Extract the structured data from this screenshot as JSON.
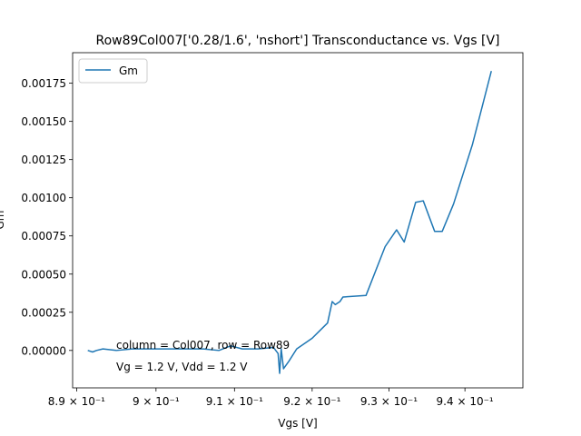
{
  "chart_data": {
    "type": "line",
    "title": "Row89Col007['0.28/1.6', 'nshort'] Transconductance vs. Vgs [V]",
    "xlabel": "Vgs [V]",
    "ylabel": "Gm",
    "x_scale": "log",
    "xlim": [
      0.8895,
      0.9477
    ],
    "ylim": [
      -0.000245,
      0.00195
    ],
    "x_ticks": [
      {
        "value": 0.89,
        "label": "8.9 × 10⁻¹"
      },
      {
        "value": 0.9,
        "label": "9 × 10⁻¹"
      },
      {
        "value": 0.91,
        "label": "9.1 × 10⁻¹"
      },
      {
        "value": 0.92,
        "label": "9.2 × 10⁻¹"
      },
      {
        "value": 0.93,
        "label": "9.3 × 10⁻¹"
      },
      {
        "value": 0.94,
        "label": "9.4 × 10⁻¹"
      }
    ],
    "y_ticks": [
      {
        "value": 0.0,
        "label": "0.00000"
      },
      {
        "value": 0.00025,
        "label": "0.00025"
      },
      {
        "value": 0.0005,
        "label": "0.00050"
      },
      {
        "value": 0.00075,
        "label": "0.00075"
      },
      {
        "value": 0.001,
        "label": "0.00100"
      },
      {
        "value": 0.00125,
        "label": "0.00125"
      },
      {
        "value": 0.0015,
        "label": "0.00150"
      },
      {
        "value": 0.00175,
        "label": "0.00175"
      }
    ],
    "legend": {
      "position": "top-left",
      "entries": [
        "Gm"
      ]
    },
    "grid": false,
    "annotations": [
      "column = Col007, row = Row89",
      "Vg = 1.2 V, Vdd = 1.2 V"
    ],
    "series": [
      {
        "name": "Gm",
        "color": "#1f77b4",
        "points": [
          [
            0.8914,
            0.0
          ],
          [
            0.892,
            -1e-05
          ],
          [
            0.8925,
            0.0
          ],
          [
            0.8933,
            1e-05
          ],
          [
            0.895,
            0.0
          ],
          [
            0.897,
            1e-05
          ],
          [
            0.899,
            1e-05
          ],
          [
            0.901,
            1e-05
          ],
          [
            0.903,
            1e-05
          ],
          [
            0.906,
            1e-05
          ],
          [
            0.908,
            0.0
          ],
          [
            0.9095,
            3e-05
          ],
          [
            0.911,
            1e-05
          ],
          [
            0.913,
            1e-05
          ],
          [
            0.915,
            2e-05
          ],
          [
            0.9156,
            -2e-05
          ],
          [
            0.9158,
            -0.00015
          ],
          [
            0.916,
            1e-05
          ],
          [
            0.9163,
            -0.00012
          ],
          [
            0.917,
            -7e-05
          ],
          [
            0.918,
            1e-05
          ],
          [
            0.92,
            8e-05
          ],
          [
            0.921,
            0.00013
          ],
          [
            0.922,
            0.00018
          ],
          [
            0.9226,
            0.00032
          ],
          [
            0.923,
            0.0003
          ],
          [
            0.9236,
            0.00032
          ],
          [
            0.924,
            0.00035
          ],
          [
            0.927,
            0.00036
          ],
          [
            0.9295,
            0.00068
          ],
          [
            0.931,
            0.00079
          ],
          [
            0.932,
            0.00071
          ],
          [
            0.9335,
            0.00097
          ],
          [
            0.9345,
            0.00098
          ],
          [
            0.936,
            0.00078
          ],
          [
            0.937,
            0.00078
          ],
          [
            0.9385,
            0.00096
          ],
          [
            0.941,
            0.00135
          ],
          [
            0.9435,
            0.00183
          ]
        ]
      }
    ]
  }
}
